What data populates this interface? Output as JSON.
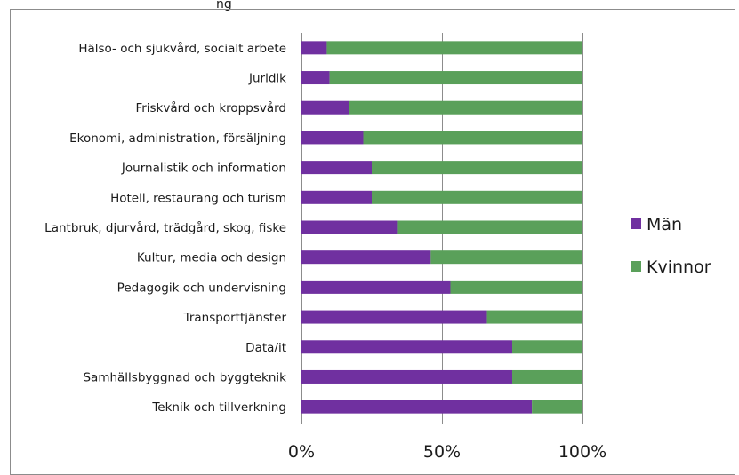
{
  "top_cut_text": "ng",
  "chart_data": {
    "type": "bar",
    "orientation": "horizontal",
    "stacked": "percent",
    "categories": [
      "Hälso- och sjukvård, socialt arbete",
      "Juridik",
      "Friskvård och kroppsvård",
      "Ekonomi, administration, försäljning",
      "Journalistik och information",
      "Hotell, restaurang och turism",
      "Lantbruk, djurvård, trädgård, skog, fiske",
      "Kultur, media och design",
      "Pedagogik och undervisning",
      "Transporttjänster",
      "Data/it",
      "Samhällsbyggnad och byggteknik",
      "Teknik och tillverkning"
    ],
    "series": [
      {
        "name": "Män",
        "color": "#7030a0",
        "values": [
          9,
          10,
          17,
          22,
          25,
          25,
          34,
          46,
          53,
          66,
          75,
          75,
          82
        ]
      },
      {
        "name": "Kvinnor",
        "color": "#5aa05a",
        "values": [
          91,
          90,
          83,
          78,
          75,
          75,
          66,
          54,
          47,
          34,
          25,
          25,
          18
        ]
      }
    ],
    "xaxis": {
      "ticks": [
        "0%",
        "50%",
        "100%"
      ],
      "range": [
        0,
        100
      ]
    },
    "grid": true,
    "legend": {
      "position": "right"
    }
  }
}
